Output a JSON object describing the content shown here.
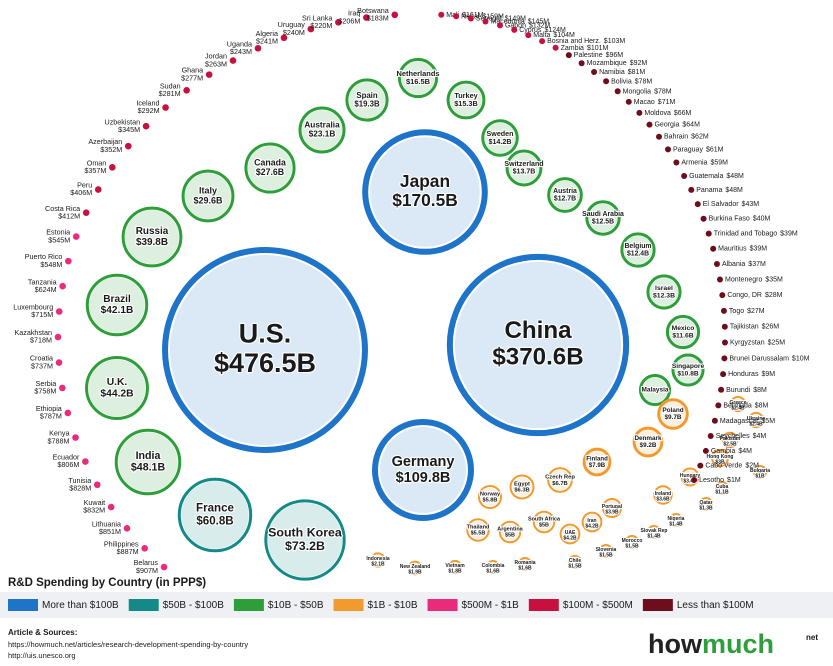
{
  "chart_data": {
    "type": "bubble",
    "title": "R&D Spending by Country (in PPP$)",
    "categories": [
      "U.S.",
      "China",
      "Japan",
      "Germany",
      "South Korea",
      "France",
      "India",
      "U.K.",
      "Brazil",
      "Russia",
      "Italy",
      "Canada",
      "Australia",
      "Spain",
      "Netherlands",
      "Turkey",
      "Sweden",
      "Switzerland",
      "Austria",
      "Saudi Arabia",
      "Belgium",
      "Israel",
      "Mexico",
      "Singapore",
      "Malaysia",
      "Poland",
      "Greece",
      "Ukraine",
      "Denmark",
      "Pakistan",
      "Finland",
      "Hong Kong",
      "Czech Rep",
      "Hungary",
      "Bulgaria",
      "Egypt",
      "Norway",
      "Cuba",
      "Ireland",
      "Qatar",
      "Portugal",
      "Iran",
      "UAE",
      "South Africa",
      "Argentina",
      "Thailand",
      "Nigeria",
      "Slovak Rep",
      "Morocco",
      "Slovenia",
      "Chile",
      "Romania",
      "Colombia",
      "Vietnam",
      "New Zealand",
      "Indonesia",
      "Belarus",
      "Philippines",
      "Lithuania",
      "Kuwait",
      "Tunisia",
      "Ecuador",
      "Kenya",
      "Ethiopia",
      "Serbia",
      "Croatia",
      "Kazakhstan",
      "Luxembourg",
      "Tanzania",
      "Puerto Rico",
      "Estonia",
      "Costa Rica",
      "Peru",
      "Oman",
      "Azerbaijan",
      "Uzbekistan",
      "Iceland",
      "Sudan",
      "Ghana",
      "Jordan",
      "Uganda",
      "Algeria",
      "Uruguay",
      "Sri Lanka",
      "Iraq",
      "Botswana",
      "Mali",
      "Nepal",
      "Senegal",
      "Macedonia",
      "Gabon",
      "Cyprus",
      "Malta",
      "Bosnia and Herz.",
      "Zambia",
      "Palestine",
      "Mozambique",
      "Namibia",
      "Bolivia",
      "Mongolia",
      "Macao",
      "Moldova",
      "Georgia",
      "Bahrain",
      "Paraguay",
      "Armenia",
      "Guatemala",
      "Panama",
      "El Salvador",
      "Burkina Faso",
      "Trinidad and Tobago",
      "Mauritius",
      "Albania",
      "Montenegro",
      "Congo, DR",
      "Togo",
      "Tajikistan",
      "Kyrgyzstan",
      "Brunei Darussalam",
      "Honduras",
      "Burundi",
      "Bermuda",
      "Madagascar",
      "Seychelles",
      "Gambia",
      "Cabo Verde",
      "Lesotho"
    ],
    "values": [
      476.5,
      370.6,
      170.5,
      109.8,
      73.2,
      60.8,
      48.1,
      44.2,
      42.1,
      39.8,
      29.6,
      27.6,
      23.1,
      19.3,
      16.5,
      15.3,
      14.2,
      13.7,
      12.7,
      12.5,
      12.4,
      12.3,
      11.6,
      10.8,
      10.1,
      9.7,
      2.4,
      2.4,
      9.2,
      2.5,
      7.9,
      3,
      6.7,
      3.4,
      1,
      6.3,
      5.8,
      1.1,
      3.6,
      1.3,
      3.9,
      4.2,
      4.2,
      5,
      5,
      5.5,
      1.4,
      1.4,
      1.5,
      1.5,
      1.5,
      1.6,
      1.6,
      1.8,
      1.9,
      2.1,
      0.907,
      0.887,
      0.851,
      0.832,
      0.828,
      0.806,
      0.788,
      0.787,
      0.758,
      0.737,
      0.718,
      0.715,
      0.624,
      0.548,
      0.545,
      0.412,
      0.406,
      0.357,
      0.352,
      0.345,
      0.292,
      0.281,
      0.277,
      0.263,
      0.243,
      0.241,
      0.24,
      0.22,
      0.206,
      0.183,
      0.161,
      0.159,
      0.149,
      0.145,
      0.132,
      0.124,
      0.104,
      0.103,
      0.101,
      0.096,
      0.092,
      0.081,
      0.078,
      0.078,
      0.071,
      0.066,
      0.064,
      0.062,
      0.061,
      0.059,
      0.048,
      0.048,
      0.043,
      0.04,
      0.039,
      0.039,
      0.037,
      0.035,
      0.028,
      0.027,
      0.026,
      0.025,
      0.01,
      0.009,
      0.008,
      0.008,
      0.005,
      0.004,
      0.004,
      0.002,
      0.001
    ],
    "value_labels": [
      "$476.5B",
      "$370.6B",
      "$170.5B",
      "$109.8B",
      "$73.2B",
      "$60.8B",
      "$48.1B",
      "$44.2B",
      "$42.1B",
      "$39.8B",
      "$29.6B",
      "$27.6B",
      "$23.1B",
      "$19.3B",
      "$16.5B",
      "$15.3B",
      "$14.2B",
      "$13.7B",
      "$12.7B",
      "$12.5B",
      "$12.4B",
      "$12.3B",
      "$11.6B",
      "$10.8B",
      null,
      "$9.7B",
      "$2.4B",
      "$2.4B",
      "$9.2B",
      "$2.5B",
      "$7.9B",
      "$3B",
      "$6.7B",
      "$3.4B",
      "$1B",
      "$6.3B",
      "$5.8B",
      "$1.1B",
      "$3.6B",
      "$1.3B",
      "$3.9B",
      "$4.2B",
      "$4.2B",
      "$5B",
      "$5B",
      "$5.5B",
      "$1.4B",
      "$1.4B",
      "$1.5B",
      "$1.5B",
      "$1.5B",
      "$1.6B",
      "$1.6B",
      "$1.8B",
      "$1.9B",
      "$2.1B",
      "$907M",
      "$887M",
      "$851M",
      "$832M",
      "$828M",
      "$806M",
      "$788M",
      "$787M",
      "$758M",
      "$737M",
      "$718M",
      "$715M",
      "$624M",
      "$548M",
      "$545M",
      "$412M",
      "$406M",
      "$357M",
      "$352M",
      "$345M",
      "$292M",
      "$281M",
      "$277M",
      "$263M",
      "$243M",
      "$241M",
      "$240M",
      "$220M",
      "$206M",
      "$183M",
      "$161M",
      "$159M",
      "$149M",
      "$145M",
      "$132M",
      "$124M",
      "$104M",
      "$103M",
      "$101M",
      "$96M",
      "$92M",
      "$81M",
      "$78M",
      "$78M",
      "$71M",
      "$66M",
      "$64M",
      "$62M",
      "$61M",
      "$59M",
      "$48M",
      "$48M",
      "$43M",
      "$40M",
      "$39M",
      "$39M",
      "$37M",
      "$35M",
      "$28M",
      "$27M",
      "$26M",
      "$25M",
      "$10M",
      "$9M",
      "$8M",
      "$8M",
      "$5M",
      "$4M",
      "$4M",
      "$2M",
      "$1M"
    ],
    "colors": [
      "#1e74c8",
      "#1e74c8",
      "#1e74c8",
      "#1e74c8",
      "#138a87",
      "#138a87",
      "#2e9e3a",
      "#2e9e3a",
      "#2e9e3a",
      "#2e9e3a",
      "#2e9e3a",
      "#2e9e3a",
      "#2e9e3a",
      "#2e9e3a",
      "#2e9e3a",
      "#2e9e3a",
      "#2e9e3a",
      "#2e9e3a",
      "#2e9e3a",
      "#2e9e3a",
      "#2e9e3a",
      "#2e9e3a",
      "#2e9e3a",
      "#2e9e3a",
      "#2e9e3a",
      "#f39a2f",
      "#f39a2f",
      "#f39a2f",
      "#f39a2f",
      "#f39a2f",
      "#f39a2f",
      "#f39a2f",
      "#f39a2f",
      "#f39a2f",
      "#f39a2f",
      "#f39a2f",
      "#f39a2f",
      "#f39a2f",
      "#f39a2f",
      "#f39a2f",
      "#f39a2f",
      "#f39a2f",
      "#f39a2f",
      "#f39a2f",
      "#f39a2f",
      "#f39a2f",
      "#f39a2f",
      "#f39a2f",
      "#f39a2f",
      "#f39a2f",
      "#f39a2f",
      "#f39a2f",
      "#f39a2f",
      "#f39a2f",
      "#f39a2f",
      "#f39a2f",
      "#ea2a7b",
      "#ea2a7b",
      "#ea2a7b",
      "#ea2a7b",
      "#ea2a7b",
      "#ea2a7b",
      "#ea2a7b",
      "#ea2a7b",
      "#ea2a7b",
      "#ea2a7b",
      "#ea2a7b",
      "#ea2a7b",
      "#ea2a7b",
      "#ea2a7b",
      "#ea2a7b",
      "#c8103e",
      "#c8103e",
      "#c8103e",
      "#c8103e",
      "#c8103e",
      "#c8103e",
      "#c8103e",
      "#c8103e",
      "#c8103e",
      "#c8103e",
      "#c8103e",
      "#c8103e",
      "#c8103e",
      "#c8103e",
      "#c8103e",
      "#c8103e",
      "#c8103e",
      "#c8103e",
      "#c8103e",
      "#c8103e",
      "#c8103e",
      "#c8103e",
      "#c8103e",
      "#c8103e",
      "#6e0d1c",
      "#6e0d1c",
      "#6e0d1c",
      "#6e0d1c",
      "#6e0d1c",
      "#6e0d1c",
      "#6e0d1c",
      "#6e0d1c",
      "#6e0d1c",
      "#6e0d1c",
      "#6e0d1c",
      "#6e0d1c",
      "#6e0d1c",
      "#6e0d1c",
      "#6e0d1c",
      "#6e0d1c",
      "#6e0d1c",
      "#6e0d1c",
      "#6e0d1c",
      "#6e0d1c",
      "#6e0d1c",
      "#6e0d1c",
      "#6e0d1c",
      "#6e0d1c",
      "#6e0d1c",
      "#6e0d1c",
      "#6e0d1c",
      "#6e0d1c",
      "#6e0d1c",
      "#6e0d1c",
      "#6e0d1c",
      "#6e0d1c"
    ],
    "legend": [
      {
        "name": "More than $100B",
        "color": "#1e74c8"
      },
      {
        "name": "$50B - $100B",
        "color": "#138a87"
      },
      {
        "name": "$10B - $50B",
        "color": "#2e9e3a"
      },
      {
        "name": "$1B - $10B",
        "color": "#f39a2f"
      },
      {
        "name": "$500M - $1B",
        "color": "#ea2a7b"
      },
      {
        "name": "$100M - $500M",
        "color": "#c8103e"
      },
      {
        "name": "Less than $100M",
        "color": "#6e0d1c"
      }
    ],
    "sources_heading": "Article & Sources:",
    "sources": [
      "https://howmuch.net/articles/research-development-spending-by-country",
      "http://uis.unesco.org"
    ],
    "logo": [
      "how",
      "much"
    ],
    "logo_suffix": "net"
  }
}
